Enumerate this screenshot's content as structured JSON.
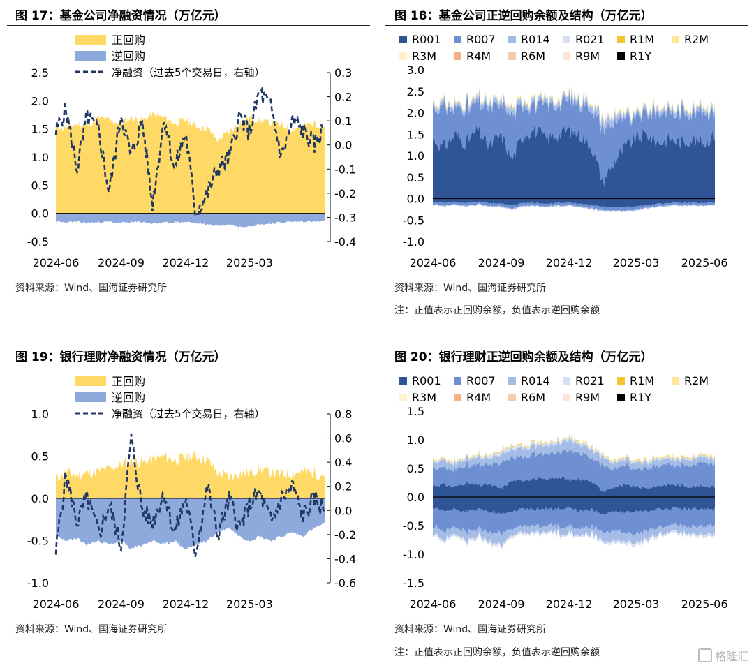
{
  "figures": {
    "f17": {
      "title": "图 17：基金公司净融资情况（万亿元）",
      "source": "资料来源：Wind、国海证券研究所",
      "note": ""
    },
    "f18": {
      "title": "图 18：基金公司正逆回购余额及结构（万亿元）",
      "source": "资料来源：Wind、国海证券研究所",
      "note": "注：正值表示正回购余额，负值表示逆回购余额"
    },
    "f19": {
      "title": "图 19：银行理财净融资情况（万亿元）",
      "source": "资料来源：Wind、国海证券研究所",
      "note": ""
    },
    "f20": {
      "title": "图 20：银行理财正逆回购余额及结构（万亿元）",
      "source": "资料来源：Wind、国海证券研究所",
      "note": "注：正值表示正回购余额，负值表示逆回购余额"
    }
  },
  "watermark": "格隆汇",
  "colors": {
    "positive_repo": "#FFD966",
    "reverse_repo": "#8EA9DB",
    "net_line": "#1F3864",
    "R001": "#2F5597",
    "R007": "#6E8FD2",
    "R014": "#A5BDE6",
    "R021": "#D6E0F2",
    "R1M": "#F4C430",
    "R2M": "#FFE699",
    "R3M": "#FFF2CC",
    "R4M": "#F4B183",
    "R6M": "#F8CBAD",
    "R9M": "#FCE4D6",
    "R1Y": "#000000"
  },
  "chart_data": [
    {
      "id": "f17",
      "type": "area",
      "x": [
        "2024-06-01",
        "2024-06-15",
        "2024-07-01",
        "2024-07-15",
        "2024-08-01",
        "2024-08-15",
        "2024-09-01",
        "2024-09-15",
        "2024-10-01",
        "2024-10-15",
        "2024-11-01",
        "2024-11-15",
        "2024-12-01",
        "2024-12-15",
        "2025-01-01",
        "2025-01-15",
        "2025-02-01",
        "2025-02-15",
        "2025-03-01",
        "2025-03-15",
        "2025-04-01",
        "2025-04-15",
        "2025-05-01",
        "2025-05-15",
        "2025-06-01",
        "2025-06-15"
      ],
      "xticks": [
        "2024-06",
        "2024-09",
        "2024-12",
        "2025-03"
      ],
      "series": [
        {
          "name": "正回购",
          "axis": "left",
          "values": [
            1.55,
            1.5,
            1.6,
            1.55,
            1.7,
            1.65,
            1.6,
            1.7,
            1.65,
            1.75,
            1.7,
            1.6,
            1.65,
            1.55,
            1.5,
            1.3,
            1.45,
            1.6,
            1.7,
            1.65,
            1.6,
            1.55,
            1.5,
            1.55,
            1.6,
            1.55
          ]
        },
        {
          "name": "逆回购",
          "axis": "left",
          "values": [
            -0.15,
            -0.16,
            -0.15,
            -0.17,
            -0.16,
            -0.15,
            -0.17,
            -0.16,
            -0.15,
            -0.18,
            -0.17,
            -0.16,
            -0.15,
            -0.17,
            -0.2,
            -0.22,
            -0.2,
            -0.24,
            -0.22,
            -0.2,
            -0.18,
            -0.16,
            -0.15,
            -0.14,
            -0.15,
            -0.14
          ]
        },
        {
          "name": "净融资（过去5个交易日，右轴）",
          "axis": "right",
          "values": [
            0.05,
            0.15,
            -0.1,
            0.12,
            0.05,
            -0.2,
            0.13,
            -0.05,
            0.1,
            -0.25,
            0.12,
            -0.1,
            0.05,
            -0.28,
            -0.2,
            -0.1,
            -0.05,
            0.12,
            0.05,
            0.22,
            0.15,
            -0.05,
            0.1,
            0.06,
            0.0,
            0.08
          ]
        }
      ],
      "ylim_left": [
        -0.5,
        2.5
      ],
      "yticks_left": [
        "2.5",
        "2.0",
        "1.5",
        "1.0",
        "0.5",
        "0.0",
        "-0.5"
      ],
      "ylim_right": [
        -0.4,
        0.3
      ],
      "yticks_right": [
        "0.3",
        "0.2",
        "0.1",
        "0.0",
        "-0.1",
        "-0.2",
        "-0.3",
        "-0.4"
      ],
      "legend": "top-left"
    },
    {
      "id": "f18",
      "type": "area",
      "x": [
        "2024-06-01",
        "2024-06-15",
        "2024-07-01",
        "2024-07-15",
        "2024-08-01",
        "2024-08-15",
        "2024-09-01",
        "2024-09-15",
        "2024-10-01",
        "2024-10-15",
        "2024-11-01",
        "2024-11-15",
        "2024-12-01",
        "2024-12-15",
        "2025-01-01",
        "2025-01-15",
        "2025-02-01",
        "2025-02-15",
        "2025-03-01",
        "2025-03-15",
        "2025-04-01",
        "2025-04-15",
        "2025-05-01",
        "2025-05-15",
        "2025-06-01",
        "2025-06-15"
      ],
      "xticks": [
        "2024-06",
        "2024-09",
        "2024-12",
        "2025-03",
        "2025-06"
      ],
      "positive": [
        {
          "name": "R001",
          "values": [
            1.4,
            1.2,
            1.5,
            1.3,
            1.6,
            1.2,
            1.5,
            0.9,
            1.5,
            1.6,
            1.4,
            1.5,
            1.6,
            1.5,
            1.2,
            0.4,
            0.9,
            1.2,
            1.4,
            1.5,
            1.3,
            1.4,
            1.3,
            1.4,
            1.3,
            1.5
          ]
        },
        {
          "name": "R007",
          "values": [
            0.7,
            0.9,
            0.6,
            0.8,
            0.6,
            0.9,
            0.7,
            1.0,
            0.7,
            0.6,
            0.8,
            0.7,
            0.7,
            0.7,
            0.9,
            1.2,
            0.9,
            0.6,
            0.5,
            0.5,
            0.7,
            0.6,
            0.7,
            0.6,
            0.7,
            0.55
          ]
        },
        {
          "name": "R014",
          "values": [
            0.08,
            0.1,
            0.08,
            0.1,
            0.1,
            0.12,
            0.1,
            0.15,
            0.1,
            0.1,
            0.1,
            0.1,
            0.1,
            0.1,
            0.12,
            0.2,
            0.15,
            0.08,
            0.08,
            0.08,
            0.1,
            0.1,
            0.1,
            0.1,
            0.1,
            0.1
          ]
        },
        {
          "name": "R021",
          "values": [
            0.02,
            0.02,
            0.02,
            0.02,
            0.02,
            0.03,
            0.03,
            0.03,
            0.02,
            0.02,
            0.02,
            0.02,
            0.02,
            0.02,
            0.03,
            0.05,
            0.04,
            0.02,
            0.02,
            0.02,
            0.02,
            0.02,
            0.02,
            0.02,
            0.02,
            0.02
          ]
        },
        {
          "name": "R1M",
          "values": [
            0.01,
            0.01,
            0.01,
            0.01,
            0.01,
            0.01,
            0.01,
            0.01,
            0.01,
            0.01,
            0.01,
            0.01,
            0.01,
            0.01,
            0.01,
            0.01,
            0.01,
            0.01,
            0.01,
            0.01,
            0.01,
            0.01,
            0.01,
            0.01,
            0.01,
            0.01
          ]
        },
        {
          "name": "R2M",
          "values": [
            0.02,
            0.02,
            0.02,
            0.02,
            0.02,
            0.02,
            0.02,
            0.02,
            0.02,
            0.02,
            0.02,
            0.02,
            0.02,
            0.02,
            0.02,
            0.02,
            0.02,
            0.02,
            0.02,
            0.02,
            0.02,
            0.02,
            0.02,
            0.02,
            0.02,
            0.02
          ]
        }
      ],
      "negative": [
        {
          "name": "R001",
          "values": [
            -0.08,
            -0.1,
            -0.08,
            -0.1,
            -0.08,
            -0.1,
            -0.12,
            -0.15,
            -0.1,
            -0.1,
            -0.12,
            -0.1,
            -0.1,
            -0.12,
            -0.15,
            -0.18,
            -0.2,
            -0.2,
            -0.18,
            -0.15,
            -0.12,
            -0.1,
            -0.1,
            -0.1,
            -0.1,
            -0.08
          ]
        },
        {
          "name": "R007",
          "values": [
            -0.05,
            -0.06,
            -0.05,
            -0.06,
            -0.05,
            -0.06,
            -0.06,
            -0.08,
            -0.06,
            -0.06,
            -0.06,
            -0.06,
            -0.05,
            -0.06,
            -0.07,
            -0.08,
            -0.08,
            -0.08,
            -0.07,
            -0.06,
            -0.06,
            -0.05,
            -0.05,
            -0.05,
            -0.05,
            -0.05
          ]
        },
        {
          "name": "R014",
          "values": [
            -0.02,
            -0.02,
            -0.02,
            -0.02,
            -0.02,
            -0.02,
            -0.02,
            -0.03,
            -0.02,
            -0.02,
            -0.02,
            -0.02,
            -0.02,
            -0.02,
            -0.03,
            -0.03,
            -0.03,
            -0.03,
            -0.03,
            -0.02,
            -0.02,
            -0.02,
            -0.02,
            -0.02,
            -0.02,
            -0.02
          ]
        }
      ],
      "ylim": [
        -1.0,
        3.0
      ],
      "yticks": [
        "3.0",
        "2.5",
        "2.0",
        "1.5",
        "1.0",
        "0.5",
        "0.0",
        "-0.5",
        "-1.0"
      ],
      "legend_items": [
        "R001",
        "R007",
        "R014",
        "R021",
        "R1M",
        "R2M",
        "R3M",
        "R4M",
        "R6M",
        "R9M",
        "R1Y"
      ],
      "legend": "top"
    },
    {
      "id": "f19",
      "type": "area",
      "x": [
        "2024-06-01",
        "2024-06-15",
        "2024-07-01",
        "2024-07-15",
        "2024-08-01",
        "2024-08-15",
        "2024-09-01",
        "2024-09-15",
        "2024-10-01",
        "2024-10-15",
        "2024-11-01",
        "2024-11-15",
        "2024-12-01",
        "2024-12-15",
        "2025-01-01",
        "2025-01-15",
        "2025-02-01",
        "2025-02-15",
        "2025-03-01",
        "2025-03-15",
        "2025-04-01",
        "2025-04-15",
        "2025-05-01",
        "2025-05-15",
        "2025-06-01",
        "2025-06-15"
      ],
      "xticks": [
        "2024-06",
        "2024-09",
        "2024-12",
        "2025-03"
      ],
      "series": [
        {
          "name": "正回购",
          "axis": "left",
          "values": [
            0.25,
            0.3,
            0.28,
            0.3,
            0.32,
            0.35,
            0.4,
            0.45,
            0.42,
            0.45,
            0.5,
            0.45,
            0.48,
            0.5,
            0.45,
            0.3,
            0.25,
            0.3,
            0.3,
            0.35,
            0.3,
            0.28,
            0.3,
            0.32,
            0.3,
            0.28
          ]
        },
        {
          "name": "逆回购",
          "axis": "left",
          "values": [
            -0.45,
            -0.5,
            -0.48,
            -0.55,
            -0.5,
            -0.55,
            -0.5,
            -0.6,
            -0.55,
            -0.5,
            -0.55,
            -0.5,
            -0.6,
            -0.55,
            -0.5,
            -0.4,
            -0.35,
            -0.45,
            -0.5,
            -0.45,
            -0.5,
            -0.45,
            -0.4,
            -0.45,
            -0.35,
            -0.3
          ]
        },
        {
          "name": "净融资（过去5个交易日，右轴）",
          "axis": "right",
          "values": [
            -0.35,
            0.3,
            -0.1,
            0.1,
            -0.2,
            0.05,
            -0.3,
            0.6,
            0.0,
            -0.1,
            0.15,
            -0.2,
            0.1,
            -0.35,
            0.2,
            -0.2,
            0.1,
            -0.15,
            0.05,
            0.15,
            -0.1,
            0.1,
            0.2,
            -0.05,
            0.1,
            0.0
          ]
        }
      ],
      "ylim_left": [
        -1.0,
        1.0
      ],
      "yticks_left": [
        "1.0",
        "0.5",
        "0.0",
        "-0.5",
        "-1.0"
      ],
      "ylim_right": [
        -0.6,
        0.8
      ],
      "yticks_right": [
        "0.8",
        "0.6",
        "0.4",
        "0.2",
        "0.0",
        "-0.2",
        "-0.4",
        "-0.6"
      ],
      "legend": "top-left"
    },
    {
      "id": "f20",
      "type": "area",
      "x": [
        "2024-06-01",
        "2024-06-15",
        "2024-07-01",
        "2024-07-15",
        "2024-08-01",
        "2024-08-15",
        "2024-09-01",
        "2024-09-15",
        "2024-10-01",
        "2024-10-15",
        "2024-11-01",
        "2024-11-15",
        "2024-12-01",
        "2024-12-15",
        "2025-01-01",
        "2025-01-15",
        "2025-02-01",
        "2025-02-15",
        "2025-03-01",
        "2025-03-15",
        "2025-04-01",
        "2025-04-15",
        "2025-05-01",
        "2025-05-15",
        "2025-06-01",
        "2025-06-15"
      ],
      "xticks": [
        "2024-06",
        "2024-09",
        "2024-12",
        "2025-03",
        "2025-06"
      ],
      "positive": [
        {
          "name": "R001",
          "values": [
            0.2,
            0.22,
            0.18,
            0.25,
            0.2,
            0.22,
            0.15,
            0.28,
            0.3,
            0.32,
            0.3,
            0.35,
            0.3,
            0.32,
            0.28,
            0.1,
            0.18,
            0.2,
            0.18,
            0.15,
            0.2,
            0.22,
            0.2,
            0.18,
            0.2,
            0.18
          ]
        },
        {
          "name": "R007",
          "values": [
            0.3,
            0.28,
            0.3,
            0.3,
            0.35,
            0.35,
            0.45,
            0.4,
            0.4,
            0.45,
            0.45,
            0.45,
            0.5,
            0.45,
            0.4,
            0.45,
            0.3,
            0.35,
            0.3,
            0.35,
            0.35,
            0.35,
            0.35,
            0.38,
            0.4,
            0.4
          ]
        },
        {
          "name": "R014",
          "values": [
            0.1,
            0.12,
            0.1,
            0.12,
            0.12,
            0.12,
            0.15,
            0.15,
            0.15,
            0.15,
            0.15,
            0.15,
            0.18,
            0.15,
            0.15,
            0.15,
            0.1,
            0.1,
            0.12,
            0.1,
            0.1,
            0.1,
            0.1,
            0.1,
            0.1,
            0.1
          ]
        },
        {
          "name": "R021",
          "values": [
            0.03,
            0.03,
            0.03,
            0.03,
            0.03,
            0.04,
            0.05,
            0.05,
            0.04,
            0.04,
            0.04,
            0.04,
            0.04,
            0.04,
            0.04,
            0.04,
            0.03,
            0.03,
            0.03,
            0.03,
            0.03,
            0.03,
            0.03,
            0.03,
            0.03,
            0.03
          ]
        },
        {
          "name": "R1M",
          "values": [
            0.01,
            0.01,
            0.01,
            0.01,
            0.01,
            0.01,
            0.01,
            0.01,
            0.01,
            0.01,
            0.01,
            0.01,
            0.01,
            0.01,
            0.01,
            0.01,
            0.01,
            0.01,
            0.01,
            0.01,
            0.01,
            0.01,
            0.01,
            0.01,
            0.01,
            0.01
          ]
        },
        {
          "name": "R2M",
          "values": [
            0.01,
            0.01,
            0.01,
            0.01,
            0.01,
            0.01,
            0.01,
            0.01,
            0.01,
            0.01,
            0.01,
            0.01,
            0.01,
            0.01,
            0.01,
            0.01,
            0.01,
            0.01,
            0.01,
            0.01,
            0.01,
            0.01,
            0.01,
            0.01,
            0.01,
            0.01
          ]
        }
      ],
      "negative": [
        {
          "name": "R001",
          "values": [
            -0.2,
            -0.25,
            -0.22,
            -0.25,
            -0.22,
            -0.25,
            -0.3,
            -0.25,
            -0.2,
            -0.22,
            -0.2,
            -0.22,
            -0.2,
            -0.25,
            -0.22,
            -0.3,
            -0.25,
            -0.28,
            -0.25,
            -0.25,
            -0.22,
            -0.2,
            -0.2,
            -0.22,
            -0.2,
            -0.2
          ]
        },
        {
          "name": "R007",
          "values": [
            -0.3,
            -0.35,
            -0.3,
            -0.35,
            -0.35,
            -0.35,
            -0.35,
            -0.3,
            -0.3,
            -0.3,
            -0.3,
            -0.3,
            -0.32,
            -0.3,
            -0.3,
            -0.3,
            -0.35,
            -0.35,
            -0.38,
            -0.35,
            -0.32,
            -0.3,
            -0.3,
            -0.32,
            -0.3,
            -0.3
          ]
        },
        {
          "name": "R014",
          "values": [
            -0.12,
            -0.15,
            -0.12,
            -0.15,
            -0.12,
            -0.15,
            -0.2,
            -0.12,
            -0.12,
            -0.12,
            -0.1,
            -0.12,
            -0.12,
            -0.12,
            -0.12,
            -0.15,
            -0.18,
            -0.15,
            -0.15,
            -0.15,
            -0.12,
            -0.12,
            -0.12,
            -0.12,
            -0.15,
            -0.15
          ]
        },
        {
          "name": "R021",
          "values": [
            -0.03,
            -0.04,
            -0.03,
            -0.04,
            -0.04,
            -0.04,
            -0.05,
            -0.04,
            -0.03,
            -0.03,
            -0.03,
            -0.03,
            -0.03,
            -0.03,
            -0.03,
            -0.04,
            -0.05,
            -0.05,
            -0.05,
            -0.04,
            -0.04,
            -0.03,
            -0.03,
            -0.04,
            -0.05,
            -0.05
          ]
        }
      ],
      "ylim": [
        -1.5,
        1.5
      ],
      "yticks": [
        "1.5",
        "1.0",
        "0.5",
        "0.0",
        "-0.5",
        "-1.0",
        "-1.5"
      ],
      "legend_items": [
        "R001",
        "R007",
        "R014",
        "R021",
        "R1M",
        "R2M",
        "R3M",
        "R4M",
        "R6M",
        "R9M",
        "R1Y"
      ],
      "legend": "top"
    }
  ]
}
